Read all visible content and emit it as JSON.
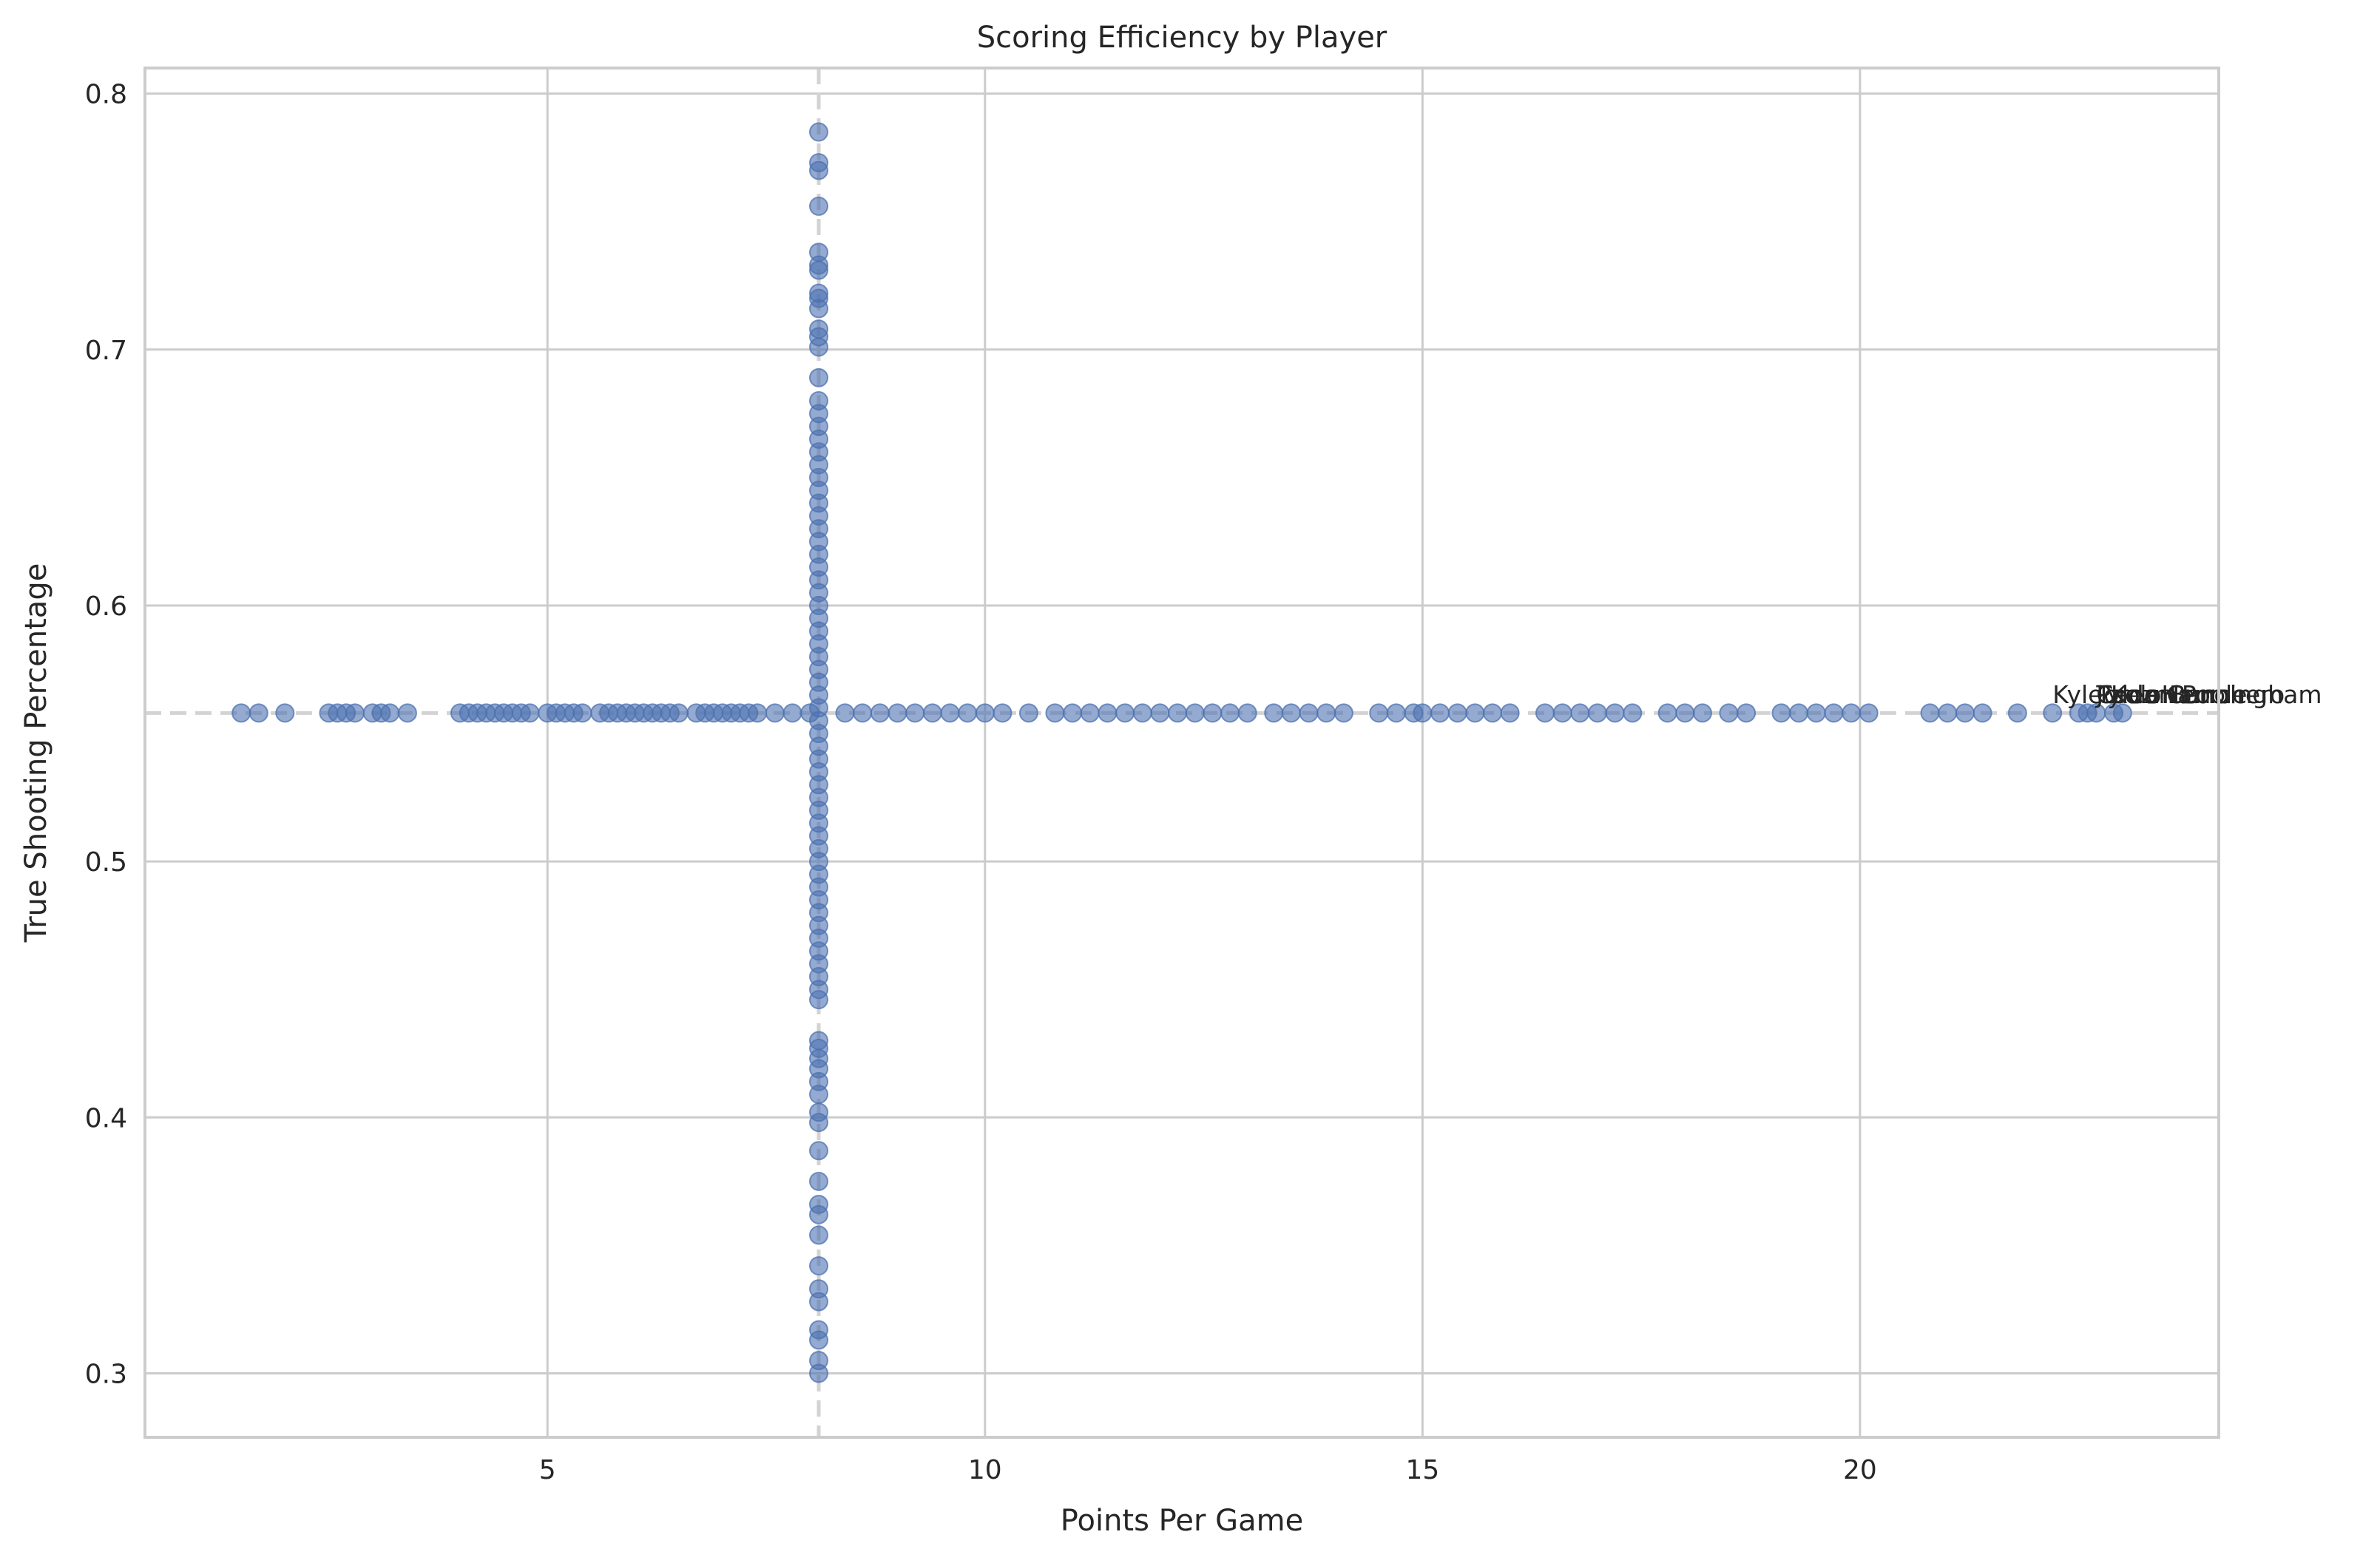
{
  "chart_data": {
    "type": "scatter",
    "title": "Scoring Efficiency by Player",
    "xlabel": "Points Per Game",
    "ylabel": "True Shooting Percentage",
    "xlim": [
      0.4,
      24.1
    ],
    "ylim": [
      0.275,
      0.81
    ],
    "xticks": [
      {
        "value": 5,
        "label": "5"
      },
      {
        "value": 10,
        "label": "10"
      },
      {
        "value": 15,
        "label": "15"
      },
      {
        "value": 20,
        "label": "20"
      }
    ],
    "yticks": [
      {
        "value": 0.3,
        "label": "0.3"
      },
      {
        "value": 0.4,
        "label": "0.4"
      },
      {
        "value": 0.5,
        "label": "0.5"
      },
      {
        "value": 0.6,
        "label": "0.6"
      },
      {
        "value": 0.7,
        "label": "0.7"
      },
      {
        "value": 0.8,
        "label": "0.8"
      }
    ],
    "grid": true,
    "reference_lines": {
      "vertical_x": 8.1,
      "horizontal_y": 0.558,
      "style": "dashed"
    },
    "point_color": "#4c72b0",
    "series": [
      {
        "points_ts_constant": {
          "y": 0.558,
          "x": [
            1.5,
            1.7,
            2.0,
            2.5,
            2.6,
            2.7,
            2.8,
            3.0,
            3.1,
            3.2,
            3.4,
            4.0,
            4.1,
            4.2,
            4.3,
            4.4,
            4.5,
            4.6,
            4.7,
            4.8,
            5.0,
            5.1,
            5.2,
            5.3,
            5.4,
            5.6,
            5.7,
            5.8,
            5.9,
            6.0,
            6.1,
            6.2,
            6.3,
            6.4,
            6.5,
            6.7,
            6.8,
            6.9,
            7.0,
            7.1,
            7.2,
            7.3,
            7.4,
            7.6,
            7.8,
            8.0,
            8.4,
            8.6,
            8.8,
            9.0,
            9.2,
            9.4,
            9.6,
            9.8,
            10.0,
            10.2,
            10.5,
            10.8,
            11.0,
            11.2,
            11.4,
            11.6,
            11.8,
            12.0,
            12.2,
            12.4,
            12.6,
            12.8,
            13.0,
            13.3,
            13.5,
            13.7,
            13.9,
            14.1,
            14.5,
            14.7,
            14.9,
            15.0,
            15.2,
            15.4,
            15.6,
            15.8,
            16.0,
            16.4,
            16.6,
            16.8,
            17.0,
            17.2,
            17.4,
            17.8,
            18.0,
            18.2,
            18.5,
            18.7,
            19.1,
            19.3,
            19.5,
            19.7,
            19.9,
            20.1,
            20.8,
            21.0,
            21.2,
            21.4,
            21.8,
            22.2,
            22.5,
            22.6,
            22.7,
            22.9,
            23.0
          ]
        },
        "points_ppg_constant": {
          "x": 8.1,
          "y": [
            0.3,
            0.305,
            0.313,
            0.317,
            0.328,
            0.333,
            0.342,
            0.354,
            0.362,
            0.366,
            0.375,
            0.387,
            0.398,
            0.402,
            0.409,
            0.414,
            0.419,
            0.423,
            0.427,
            0.43,
            0.446,
            0.45,
            0.455,
            0.46,
            0.465,
            0.47,
            0.475,
            0.48,
            0.485,
            0.49,
            0.495,
            0.5,
            0.505,
            0.51,
            0.515,
            0.52,
            0.525,
            0.53,
            0.535,
            0.54,
            0.545,
            0.55,
            0.555,
            0.56,
            0.565,
            0.57,
            0.575,
            0.58,
            0.585,
            0.59,
            0.595,
            0.6,
            0.605,
            0.61,
            0.615,
            0.62,
            0.625,
            0.63,
            0.635,
            0.64,
            0.645,
            0.65,
            0.655,
            0.66,
            0.665,
            0.67,
            0.675,
            0.68,
            0.689,
            0.701,
            0.705,
            0.708,
            0.716,
            0.72,
            0.722,
            0.731,
            0.733,
            0.738,
            0.756,
            0.77,
            0.773,
            0.785
          ]
        }
      }
    ],
    "annotations": [
      {
        "text": "Kyle Kuzma",
        "x": 22.2,
        "y": 0.563
      },
      {
        "text": "Cade Cunningham",
        "x": 22.7,
        "y": 0.563
      },
      {
        "text": "Jordan Poole",
        "x": 22.7,
        "y": 0.563
      },
      {
        "text": "Tyler Herro",
        "x": 22.7,
        "y": 0.563
      },
      {
        "text": "Paolo Banchero",
        "x": 22.7,
        "y": 0.563
      }
    ]
  }
}
